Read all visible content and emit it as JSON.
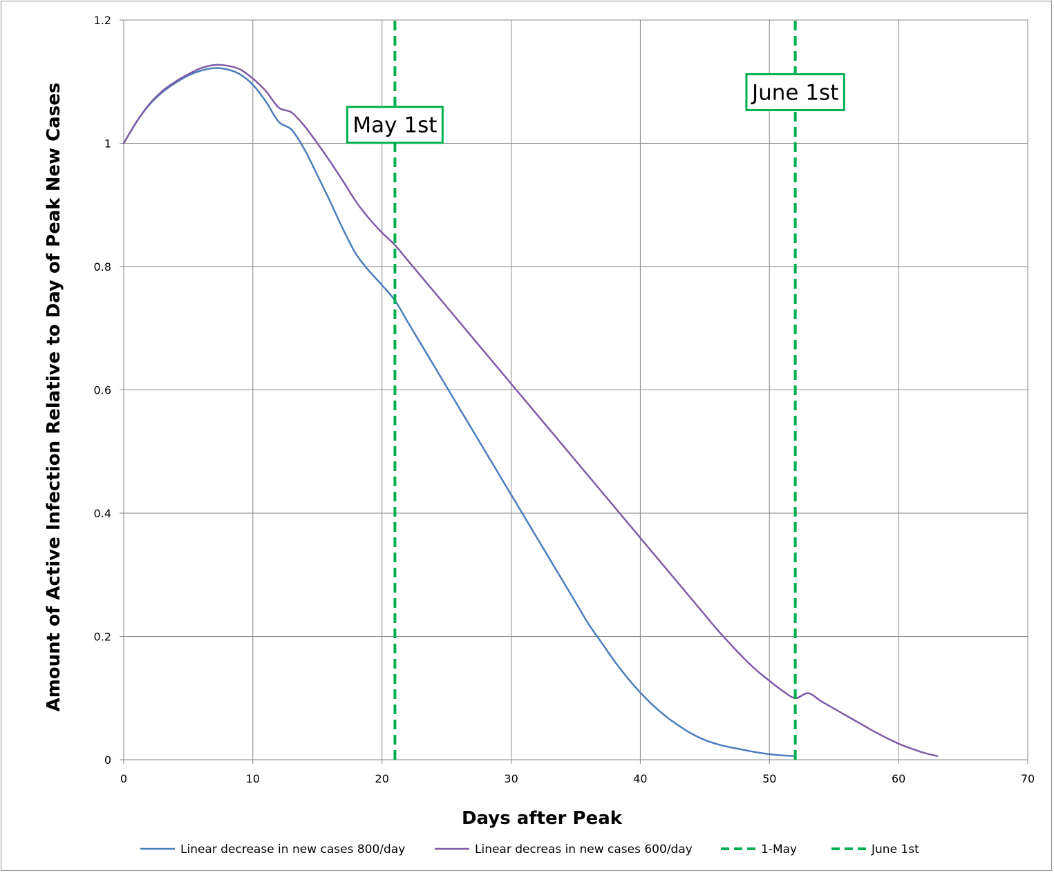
{
  "chart_data": {
    "type": "line",
    "title": "",
    "xlabel": "Days after Peak",
    "ylabel": "Amount of Active Infection Relative to Day of Peak New Cases",
    "xlim": [
      0,
      70
    ],
    "ylim": [
      0,
      1.2
    ],
    "x_ticks": [
      0,
      10,
      20,
      30,
      40,
      50,
      60,
      70
    ],
    "y_ticks": [
      0,
      0.2,
      0.4,
      0.6,
      0.8,
      1,
      1.2
    ],
    "x_tick_labels": [
      "0",
      "10",
      "20",
      "30",
      "40",
      "50",
      "60",
      "70"
    ],
    "y_tick_labels": [
      "0",
      "0.2",
      "0.4",
      "0.6",
      "0.8",
      "1",
      "1.2"
    ],
    "grid": true,
    "legend_position": "bottom",
    "series": [
      {
        "name": "Linear decrease in new cases 800/day",
        "color": "#4a7ebb",
        "style": "solid",
        "x": [
          0,
          1,
          2,
          3,
          4,
          5,
          6,
          7,
          8,
          9,
          10,
          11,
          12,
          13,
          14,
          15,
          16,
          17,
          18,
          19,
          20,
          21,
          22,
          23,
          24,
          25,
          26,
          27,
          28,
          29,
          30,
          31,
          32,
          33,
          34,
          35,
          36,
          37,
          38,
          39,
          40,
          41,
          42,
          43,
          44,
          45,
          46,
          47,
          48,
          49,
          50,
          51,
          52
        ],
        "y": [
          1.0,
          1.035,
          1.063,
          1.083,
          1.098,
          1.11,
          1.118,
          1.122,
          1.12,
          1.112,
          1.095,
          1.068,
          1.035,
          1.022,
          0.99,
          0.948,
          0.905,
          0.86,
          0.82,
          0.793,
          0.77,
          0.745,
          0.71,
          0.675,
          0.64,
          0.605,
          0.57,
          0.535,
          0.5,
          0.465,
          0.43,
          0.395,
          0.36,
          0.325,
          0.29,
          0.255,
          0.22,
          0.19,
          0.16,
          0.133,
          0.109,
          0.088,
          0.07,
          0.055,
          0.042,
          0.032,
          0.025,
          0.02,
          0.016,
          0.012,
          0.009,
          0.007,
          0.006
        ]
      },
      {
        "name": "Linear decreas in new cases 600/day",
        "color": "#7e5ca6",
        "style": "solid",
        "x": [
          0,
          1,
          2,
          3,
          4,
          5,
          6,
          7,
          8,
          9,
          10,
          11,
          12,
          13,
          14,
          15,
          16,
          17,
          18,
          19,
          20,
          21,
          22,
          23,
          24,
          25,
          26,
          27,
          28,
          29,
          30,
          31,
          32,
          33,
          34,
          35,
          36,
          37,
          38,
          39,
          40,
          41,
          42,
          43,
          44,
          45,
          46,
          47,
          48,
          49,
          50,
          51,
          52,
          53,
          54,
          55,
          56,
          57,
          58,
          59,
          60,
          61,
          62,
          63
        ],
        "y": [
          1.0,
          1.035,
          1.064,
          1.085,
          1.1,
          1.112,
          1.122,
          1.127,
          1.126,
          1.12,
          1.105,
          1.085,
          1.058,
          1.05,
          1.028,
          1.0,
          0.97,
          0.938,
          0.905,
          0.878,
          0.855,
          0.835,
          0.81,
          0.785,
          0.76,
          0.735,
          0.71,
          0.685,
          0.66,
          0.635,
          0.61,
          0.585,
          0.56,
          0.535,
          0.51,
          0.485,
          0.46,
          0.435,
          0.41,
          0.385,
          0.36,
          0.335,
          0.31,
          0.285,
          0.26,
          0.235,
          0.21,
          0.187,
          0.165,
          0.145,
          0.128,
          0.112,
          0.1,
          0.108,
          0.095,
          0.083,
          0.071,
          0.059,
          0.047,
          0.036,
          0.026,
          0.018,
          0.011,
          0.006
        ]
      },
      {
        "name": "1-May",
        "color": "#00b050",
        "style": "dashed",
        "x": [
          21,
          21
        ],
        "y": [
          0,
          1.2
        ]
      },
      {
        "name": "June 1st",
        "color": "#00b050",
        "style": "dashed",
        "x": [
          52,
          52
        ],
        "y": [
          0,
          1.2
        ]
      }
    ],
    "annotations": [
      {
        "text": "May 1st",
        "x": 21,
        "y": 1.03,
        "border_color": "#00b050"
      },
      {
        "text": "June 1st",
        "x": 52,
        "y": 1.083,
        "border_color": "#00b050"
      }
    ]
  }
}
